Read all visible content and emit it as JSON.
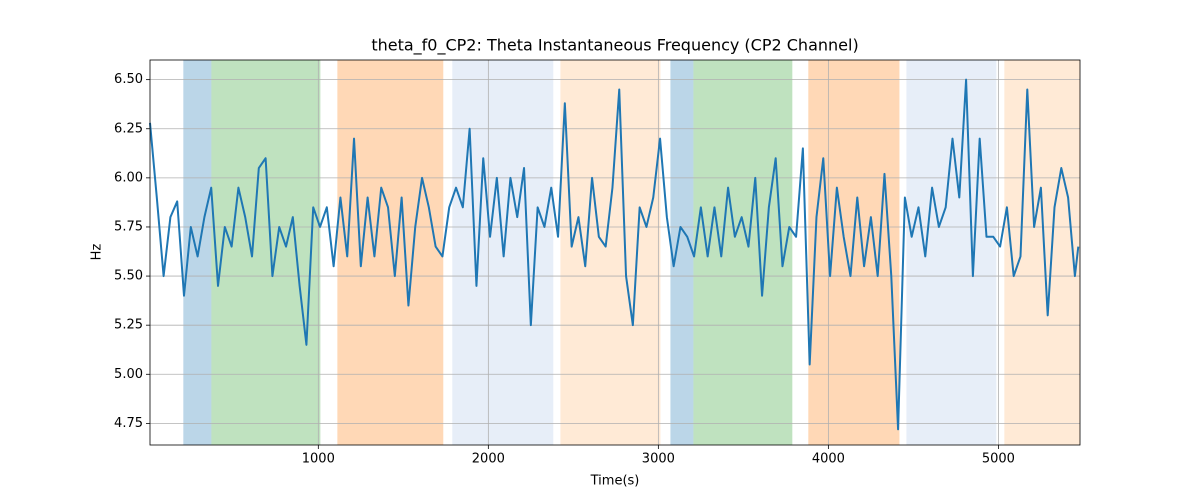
{
  "chart_data": {
    "type": "line",
    "title": "theta_f0_CP2: Theta Instantaneous Frequency (CP2 Channel)",
    "x_label": "Time(s)",
    "y_label": "Hz",
    "color": "#1f77b4",
    "xlim": [
      10,
      5480
    ],
    "ylim": [
      4.64,
      6.6
    ],
    "xticks": [
      1000,
      2000,
      3000,
      4000,
      5000
    ],
    "yticks": [
      {
        "value": 4.75,
        "label": "4.75"
      },
      {
        "value": 5.0,
        "label": "5.00"
      },
      {
        "value": 5.25,
        "label": "5.25"
      },
      {
        "value": 5.5,
        "label": "5.50"
      },
      {
        "value": 5.75,
        "label": "5.75"
      },
      {
        "value": 6.0,
        "label": "6.00"
      },
      {
        "value": 6.25,
        "label": "6.25"
      },
      {
        "value": 6.5,
        "label": "6.50"
      }
    ],
    "grid": true,
    "spans": [
      {
        "x0": 206,
        "x1": 371,
        "color": "#1f77b4",
        "alpha": 0.3
      },
      {
        "x0": 371,
        "x1": 1012,
        "color": "#2ca02c",
        "alpha": 0.3
      },
      {
        "x0": 1112,
        "x1": 1735,
        "color": "#ff7f0e",
        "alpha": 0.3
      },
      {
        "x0": 1788,
        "x1": 2382,
        "color": "#aec7e8",
        "alpha": 0.3
      },
      {
        "x0": 2424,
        "x1": 3012,
        "color": "#ffbb78",
        "alpha": 0.3
      },
      {
        "x0": 3071,
        "x1": 3206,
        "color": "#1f77b4",
        "alpha": 0.3
      },
      {
        "x0": 3206,
        "x1": 3788,
        "color": "#2ca02c",
        "alpha": 0.3
      },
      {
        "x0": 3882,
        "x1": 4418,
        "color": "#ff7f0e",
        "alpha": 0.3
      },
      {
        "x0": 4459,
        "x1": 4988,
        "color": "#aec7e8",
        "alpha": 0.3
      },
      {
        "x0": 5035,
        "x1": 5480,
        "color": "#ffbb78",
        "alpha": 0.3
      }
    ],
    "x": [
      10,
      50,
      90,
      130,
      170,
      210,
      250,
      290,
      330,
      370,
      410,
      450,
      490,
      530,
      570,
      610,
      650,
      690,
      730,
      770,
      810,
      850,
      890,
      930,
      970,
      1010,
      1050,
      1090,
      1130,
      1170,
      1210,
      1250,
      1290,
      1330,
      1370,
      1410,
      1450,
      1490,
      1530,
      1570,
      1610,
      1650,
      1690,
      1730,
      1770,
      1810,
      1850,
      1890,
      1930,
      1970,
      2010,
      2050,
      2090,
      2130,
      2170,
      2210,
      2250,
      2290,
      2330,
      2370,
      2410,
      2450,
      2490,
      2530,
      2570,
      2610,
      2650,
      2690,
      2730,
      2770,
      2810,
      2850,
      2890,
      2930,
      2970,
      3010,
      3050,
      3090,
      3130,
      3170,
      3210,
      3250,
      3290,
      3330,
      3370,
      3410,
      3450,
      3490,
      3530,
      3570,
      3610,
      3650,
      3690,
      3730,
      3770,
      3810,
      3850,
      3890,
      3930,
      3970,
      4010,
      4050,
      4090,
      4130,
      4170,
      4210,
      4250,
      4290,
      4330,
      4370,
      4410,
      4450,
      4490,
      4530,
      4570,
      4610,
      4650,
      4690,
      4730,
      4770,
      4810,
      4850,
      4890,
      4930,
      4970,
      5010,
      5050,
      5090,
      5130,
      5170,
      5210,
      5250,
      5290,
      5330,
      5370,
      5410,
      5450,
      5470
    ],
    "values": [
      6.28,
      5.9,
      5.5,
      5.8,
      5.88,
      5.4,
      5.75,
      5.6,
      5.8,
      5.95,
      5.45,
      5.75,
      5.65,
      5.95,
      5.8,
      5.6,
      6.05,
      6.1,
      5.5,
      5.75,
      5.65,
      5.8,
      5.45,
      5.15,
      5.85,
      5.75,
      5.85,
      5.55,
      5.9,
      5.6,
      6.2,
      5.55,
      5.9,
      5.6,
      5.95,
      5.85,
      5.5,
      5.9,
      5.35,
      5.75,
      6.0,
      5.85,
      5.65,
      5.6,
      5.85,
      5.95,
      5.85,
      6.25,
      5.45,
      6.1,
      5.7,
      6.0,
      5.6,
      6.0,
      5.8,
      6.05,
      5.25,
      5.85,
      5.75,
      5.95,
      5.7,
      6.38,
      5.65,
      5.8,
      5.55,
      6.0,
      5.7,
      5.65,
      5.95,
      6.45,
      5.5,
      5.25,
      5.85,
      5.75,
      5.9,
      6.2,
      5.8,
      5.55,
      5.75,
      5.7,
      5.6,
      5.85,
      5.6,
      5.85,
      5.6,
      5.95,
      5.7,
      5.8,
      5.65,
      6.0,
      5.4,
      5.85,
      6.1,
      5.55,
      5.75,
      5.7,
      6.15,
      5.05,
      5.8,
      6.1,
      5.5,
      5.95,
      5.7,
      5.5,
      5.9,
      5.55,
      5.8,
      5.5,
      6.02,
      5.5,
      4.72,
      5.9,
      5.7,
      5.85,
      5.6,
      5.95,
      5.75,
      5.85,
      6.2,
      5.9,
      6.5,
      5.5,
      6.2,
      5.7,
      5.7,
      5.65,
      5.85,
      5.5,
      5.6,
      6.45,
      5.75,
      5.95,
      5.3,
      5.85,
      6.05,
      5.9,
      5.5,
      5.65
    ]
  }
}
